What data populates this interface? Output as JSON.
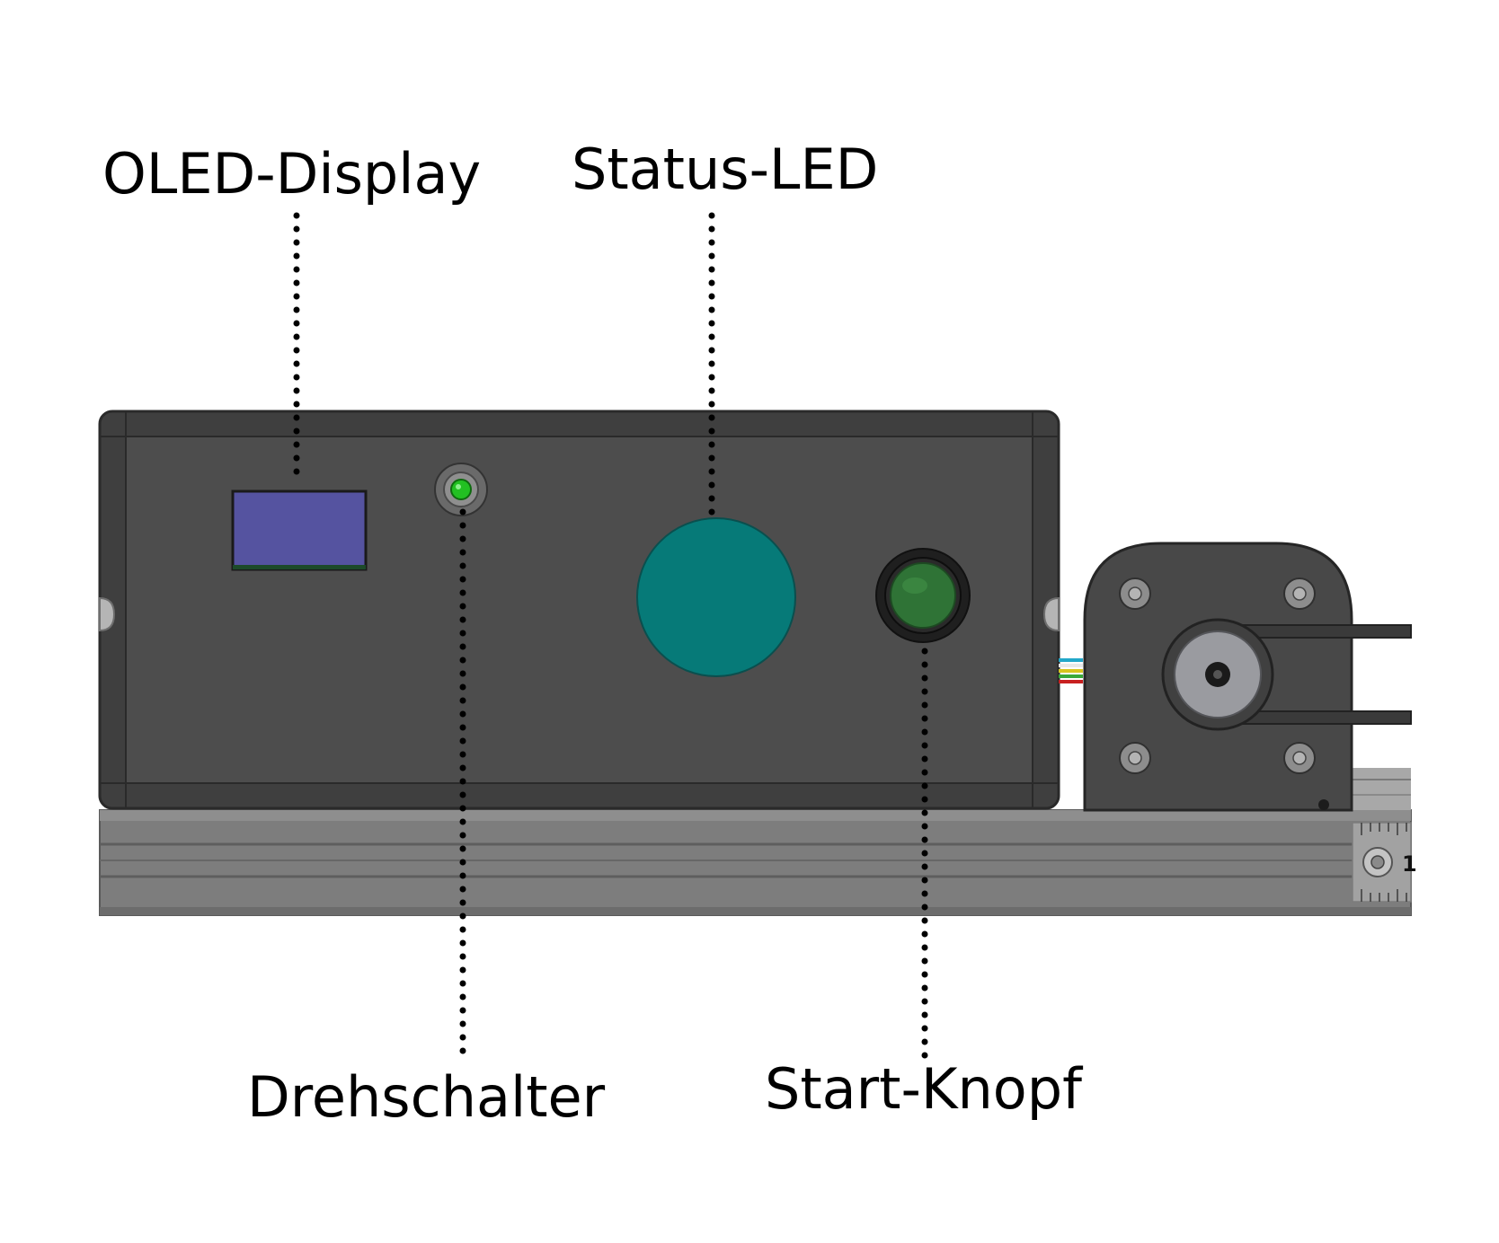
{
  "labels": {
    "oled_display": "OLED-Display",
    "status_led": "Status-LED",
    "rotary_switch": "Drehschalter",
    "start_button": "Start-Knopf"
  },
  "colors": {
    "housing": "#4c4c4c",
    "oled_screen": "#5553a0",
    "status_led": "#067a78",
    "indicator_led": "#22c022",
    "start_button": "#2f7336",
    "rail": "#7a7a7a",
    "motor_plate": "#484848",
    "pulley": "#9a9ba0"
  },
  "icons": {
    "oled_display": "oled-screen",
    "status_led": "status-led-disc",
    "rotary_switch": "indicator-led",
    "start_button": "push-button"
  },
  "rail_scale_digit": "1"
}
